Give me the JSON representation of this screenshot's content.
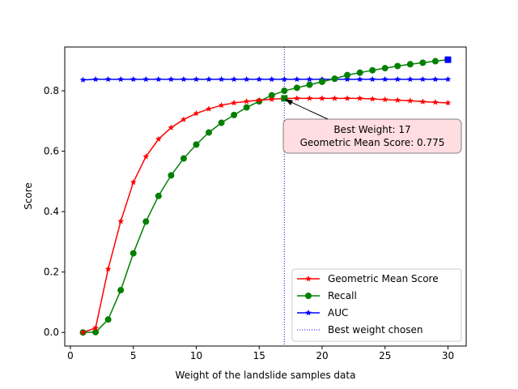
{
  "chart_data": {
    "type": "line",
    "xlabel": "Weight of the landslide samples data",
    "ylabel": "Score",
    "xlim": [
      -0.45,
      31.45
    ],
    "ylim": [
      -0.045,
      0.945
    ],
    "xticks": [
      0,
      5,
      10,
      15,
      20,
      25,
      30
    ],
    "xtick_labels": [
      "0",
      "5",
      "10",
      "15",
      "20",
      "25",
      "30"
    ],
    "yticks": [
      0.0,
      0.2,
      0.4,
      0.6,
      0.8
    ],
    "ytick_labels": [
      "0.0",
      "0.2",
      "0.4",
      "0.6",
      "0.8"
    ],
    "grid": false,
    "legend_position": "lower-right",
    "x": [
      1,
      2,
      3,
      4,
      5,
      6,
      7,
      8,
      9,
      10,
      11,
      12,
      13,
      14,
      15,
      16,
      17,
      18,
      19,
      20,
      21,
      22,
      23,
      24,
      25,
      26,
      27,
      28,
      29,
      30
    ],
    "series": [
      {
        "name": "Geometric Mean Score",
        "color": "#ff0000",
        "marker": "star",
        "values": [
          0.0,
          0.015,
          0.21,
          0.368,
          0.497,
          0.582,
          0.64,
          0.678,
          0.705,
          0.725,
          0.74,
          0.752,
          0.76,
          0.765,
          0.769,
          0.772,
          0.775,
          0.775,
          0.775,
          0.775,
          0.775,
          0.775,
          0.775,
          0.773,
          0.771,
          0.769,
          0.767,
          0.764,
          0.762,
          0.76
        ]
      },
      {
        "name": "Recall",
        "color": "#008000",
        "marker": "circle",
        "values": [
          0.0,
          0.001,
          0.043,
          0.14,
          0.262,
          0.367,
          0.452,
          0.52,
          0.576,
          0.622,
          0.662,
          0.694,
          0.72,
          0.745,
          0.765,
          0.785,
          0.8,
          0.81,
          0.82,
          0.83,
          0.84,
          0.852,
          0.86,
          0.868,
          0.875,
          0.882,
          0.888,
          0.893,
          0.898,
          0.903
        ]
      },
      {
        "name": "AUC",
        "color": "#0000ff",
        "marker": "star",
        "values": [
          0.836,
          0.838,
          0.838,
          0.838,
          0.838,
          0.838,
          0.838,
          0.838,
          0.838,
          0.838,
          0.838,
          0.838,
          0.838,
          0.838,
          0.838,
          0.838,
          0.838,
          0.838,
          0.838,
          0.838,
          0.838,
          0.838,
          0.838,
          0.838,
          0.838,
          0.838,
          0.838,
          0.838,
          0.838,
          0.838
        ]
      }
    ],
    "best_line": {
      "name": "Best weight chosen",
      "x": 17,
      "color": "#0000ff"
    },
    "best_point": {
      "x": 17,
      "y": 0.775
    },
    "last_point": {
      "x": 30,
      "y": 0.903
    },
    "annotation": {
      "line1": "Best Weight: 17",
      "line2": "Geometric Mean Score: 0.775",
      "background": "#ffdde1"
    }
  }
}
